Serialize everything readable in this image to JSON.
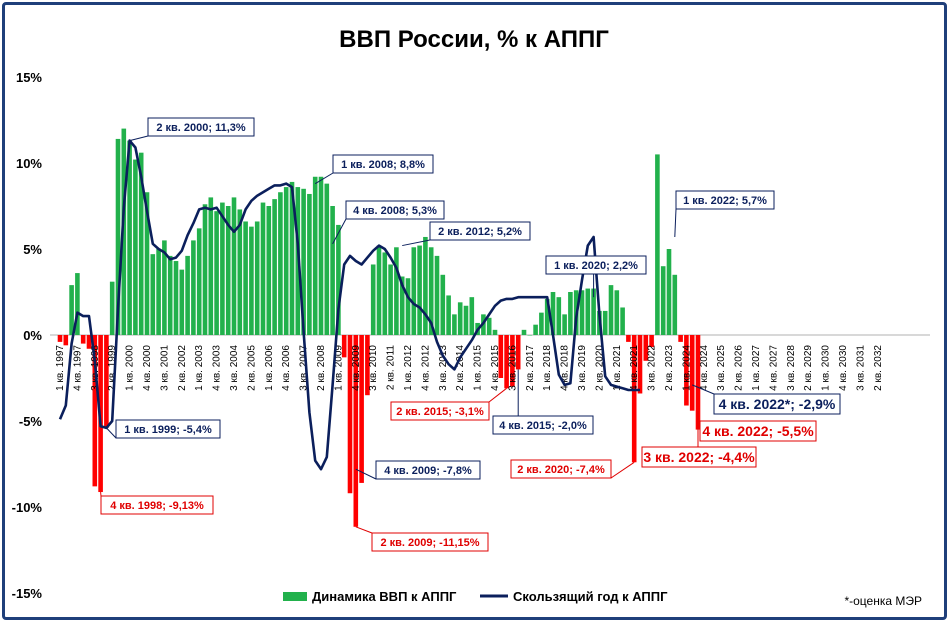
{
  "chart_data": {
    "type": "bar+line",
    "title": "ВВП России, % к АППГ",
    "footnote": "*-оценка МЭР",
    "ylim": [
      -15,
      15
    ],
    "yticks": [
      "15%",
      "10%",
      "5%",
      "0%",
      "-5%",
      "-10%",
      "-15%"
    ],
    "ytick_values": [
      15,
      10,
      5,
      0,
      -5,
      -10,
      -15
    ],
    "grid": false,
    "legend_position": "bottom",
    "colors": {
      "bar_pos": "#22b14c",
      "bar_neg": "#ff0000",
      "line": "#0b1f5c",
      "ann_blue": "#0b1f5c",
      "ann_red": "#e00000",
      "frame": "#1f3f7a"
    },
    "x_labels": [
      "1 кв. 1997",
      "4 кв. 1997",
      "3 кв. 1998",
      "2 кв. 1999",
      "1 кв. 2000",
      "4 кв. 2000",
      "3 кв. 2001",
      "2 кв. 2002",
      "1 кв. 2003",
      "4 кв. 2003",
      "3 кв. 2004",
      "2 кв. 2005",
      "1 кв. 2006",
      "4 кв. 2006",
      "3 кв. 2007",
      "2 кв. 2008",
      "1 кв. 2009",
      "4 кв. 2009",
      "3 кв. 2010",
      "2 кв. 2011",
      "1 кв. 2012",
      "4 кв. 2012",
      "3 кв. 2013",
      "2 кв. 2014",
      "1 кв. 2015",
      "4 кв. 2015",
      "3 кв. 2016",
      "2 кв. 2017",
      "1 кв. 2018",
      "4 кв. 2018",
      "3 кв. 2019",
      "2 кв. 2020",
      "1 кв. 2021",
      "4 кв. 2021",
      "3 кв. 2022",
      "2 кв. 2023",
      "1 кв. 2024",
      "4 кв. 2024",
      "3 кв. 2025",
      "2 кв. 2026",
      "1 кв. 2027",
      "4 кв. 2027",
      "3 кв. 2028",
      "2 кв. 2029",
      "1 кв. 2030",
      "4 кв. 2030",
      "3 кв. 2031",
      "2 кв. 2032"
    ],
    "series": [
      {
        "name": "Динамика ВВП к АППГ",
        "kind": "bar",
        "values": [
          -0.4,
          -0.6,
          2.9,
          3.6,
          -0.5,
          -0.8,
          -8.8,
          -9.13,
          -5.4,
          3.1,
          11.4,
          12.0,
          11.3,
          10.2,
          10.6,
          8.3,
          4.7,
          5.0,
          5.5,
          4.6,
          4.3,
          3.8,
          4.6,
          5.5,
          6.2,
          7.6,
          8.0,
          7.2,
          7.7,
          7.5,
          8.0,
          7.3,
          6.6,
          6.3,
          6.6,
          7.7,
          7.5,
          7.9,
          8.3,
          8.6,
          8.9,
          8.6,
          8.5,
          8.2,
          9.2,
          9.2,
          8.8,
          7.5,
          6.4,
          -1.3,
          -9.2,
          -11.15,
          -8.6,
          -3.5,
          4.1,
          5.2,
          4.8,
          4.1,
          5.1,
          3.4,
          3.3,
          5.1,
          5.2,
          5.7,
          5.1,
          4.6,
          3.5,
          2.3,
          1.2,
          1.9,
          1.7,
          2.2,
          0.7,
          1.2,
          1.0,
          0.3,
          -2.5,
          -3.1,
          -3.0,
          -2.0,
          0.3,
          0.0,
          0.6,
          1.3,
          2.1,
          2.5,
          2.2,
          1.2,
          2.5,
          2.6,
          2.6,
          2.7,
          2.7,
          1.4,
          1.4,
          2.9,
          2.6,
          1.6,
          -0.4,
          -7.4,
          -3.4,
          -1.5,
          -0.7,
          10.5,
          4.0,
          5.0,
          3.5,
          -0.4,
          -4.1,
          -4.4,
          -5.5
        ],
        "first_label_index": 0
      },
      {
        "name": "Скользящий год к АППГ",
        "kind": "line",
        "values": [
          -4.9,
          -4.1,
          -0.5,
          1.3,
          1.1,
          1.1,
          -1.5,
          -5.3,
          -5.4,
          -5.0,
          1.5,
          7.4,
          11.3,
          10.9,
          9.2,
          7.2,
          5.3,
          5.0,
          4.8,
          4.4,
          4.5,
          4.9,
          5.8,
          6.5,
          7.3,
          7.4,
          7.3,
          7.4,
          6.9,
          6.4,
          6.0,
          6.4,
          7.3,
          7.8,
          8.1,
          8.3,
          8.5,
          8.7,
          8.7,
          8.8,
          8.6,
          5.3,
          0.2,
          -4.5,
          -7.3,
          -7.8,
          -7.1,
          -2.9,
          1.5,
          4.1,
          4.6,
          4.3,
          4.1,
          4.5,
          4.9,
          5.2,
          5.0,
          4.5,
          3.9,
          2.9,
          2.2,
          1.8,
          1.6,
          1.2,
          0.7,
          -0.4,
          -1.2,
          -1.7,
          -2.0,
          -1.3,
          -0.8,
          -0.3,
          0.3,
          0.7,
          1.2,
          1.7,
          2.0,
          2.1,
          2.1,
          2.2,
          2.2,
          2.2,
          2.2,
          2.2,
          2.2,
          0.0,
          -2.3,
          -2.9,
          -2.8,
          1.0,
          3.2,
          5.2,
          5.7,
          1.2,
          -2.4,
          -2.9,
          -3.0,
          -3.1,
          -3.2,
          -3.2,
          -3.2
        ],
        "first_label_index": 0
      }
    ],
    "annotations": [
      {
        "text": "2 кв. 2000; 11,3%",
        "color": "blue"
      },
      {
        "text": "1 кв. 2008; 8,8%",
        "color": "blue"
      },
      {
        "text": "4 кв. 2008; 5,3%",
        "color": "blue"
      },
      {
        "text": "2 кв. 2012; 5,2%",
        "color": "blue"
      },
      {
        "text": "1 кв. 2020; 2,2%",
        "color": "blue"
      },
      {
        "text": "1 кв. 2022; 5,7%",
        "color": "blue"
      },
      {
        "text": "1 кв. 1999; -5,4%",
        "color": "blue"
      },
      {
        "text": "4 кв. 2009; -7,8%",
        "color": "blue"
      },
      {
        "text": "4 кв. 2015; -2,0%",
        "color": "blue"
      },
      {
        "text": "4 кв. 2022*; -2,9%",
        "color": "blue"
      },
      {
        "text": "4 кв. 1998; -9,13%",
        "color": "red"
      },
      {
        "text": "2 кв. 2009; -11,15%",
        "color": "red"
      },
      {
        "text": "2 кв. 2015; -3,1%",
        "color": "red"
      },
      {
        "text": "2 кв. 2020; -7,4%",
        "color": "red"
      },
      {
        "text": "3 кв. 2022; -4,4%",
        "color": "red"
      },
      {
        "text": "4 кв. 2022; -5,5%",
        "color": "red"
      }
    ]
  }
}
